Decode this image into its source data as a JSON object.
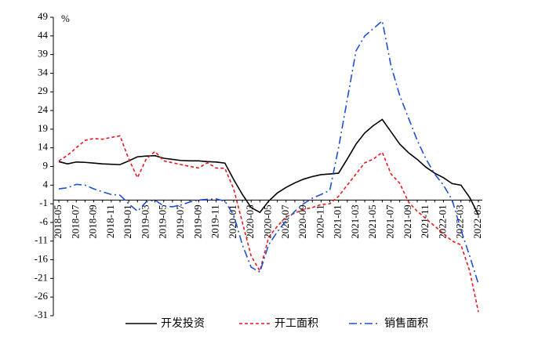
{
  "chart_data": {
    "type": "line",
    "y_unit": "%",
    "categories": [
      "2018-05",
      null,
      "2018-07",
      null,
      "2018-09",
      null,
      "2018-11",
      null,
      "2019-01",
      null,
      "2019-03",
      null,
      "2019-05",
      null,
      "2019-07",
      null,
      "2019-09",
      null,
      "2019-11",
      null,
      "2020-01",
      null,
      "2020-03",
      null,
      "2020-05",
      null,
      "2020-07",
      null,
      "2020-09",
      null,
      "2020-11",
      null,
      "2021-01",
      null,
      "2021-03",
      null,
      "2021-05",
      null,
      "2021-07",
      null,
      "2021-09",
      null,
      "2021-11",
      null,
      "2022-01",
      null,
      "2022-03",
      null,
      "2022-05"
    ],
    "series": [
      {
        "name": "开发投资",
        "color": "#000000",
        "dash": "none",
        "values": [
          10.3,
          9.7,
          10.2,
          10.1,
          9.9,
          9.7,
          9.6,
          9.5,
          10.5,
          11.6,
          11.8,
          11.9,
          11.2,
          10.9,
          10.6,
          10.5,
          10.5,
          10.3,
          10.2,
          9.9,
          5.5,
          1.5,
          -2,
          -3.3,
          -0.3,
          1.9,
          3.4,
          4.6,
          5.6,
          6.3,
          6.8,
          7.0,
          7.2,
          11,
          15,
          18,
          20,
          21.6,
          18.3,
          15,
          12.7,
          10.9,
          8.8,
          7.2,
          6.0,
          4.4,
          4.0,
          0.7,
          -4
        ]
      },
      {
        "name": "开工面积",
        "color": "#e8191c",
        "dash": "4,3",
        "values": [
          10.5,
          12,
          14,
          16,
          16.5,
          16.3,
          16.8,
          17.2,
          11,
          6,
          11,
          13,
          10.5,
          10,
          9.5,
          9,
          8.6,
          10,
          8.6,
          8.5,
          3,
          -6,
          -15,
          -19,
          -10,
          -7,
          -4.5,
          -3.5,
          -2.5,
          -2,
          -1.2,
          -1,
          1,
          4,
          7,
          10,
          11,
          12.8,
          7,
          4.5,
          -0.5,
          -3,
          -5,
          -7,
          -9,
          -11,
          -12,
          -19,
          -30
        ]
      },
      {
        "name": "销售面积",
        "color": "#1f4fd8",
        "dash": "10,4,2,4",
        "values": [
          3,
          3.3,
          4.2,
          4,
          3,
          2.2,
          1.5,
          1.3,
          -1,
          -3,
          -0.5,
          0,
          -1.6,
          -1.8,
          -1.3,
          -0.5,
          0,
          0.2,
          0.3,
          -0.3,
          -4,
          -12,
          -18,
          -19.3,
          -12,
          -8.5,
          -5.5,
          -3,
          -1,
          0.5,
          1.5,
          2.6,
          14,
          27,
          40,
          44,
          46,
          48,
          36,
          28,
          22,
          16,
          11,
          7,
          4,
          0,
          -8,
          -15,
          -22.5
        ]
      }
    ],
    "ylim": [
      -31,
      49
    ],
    "yticks": [
      49,
      44,
      39,
      34,
      29,
      24,
      19,
      14,
      9,
      4,
      -1,
      -6,
      -11,
      -16,
      -21,
      -26,
      -31
    ]
  }
}
